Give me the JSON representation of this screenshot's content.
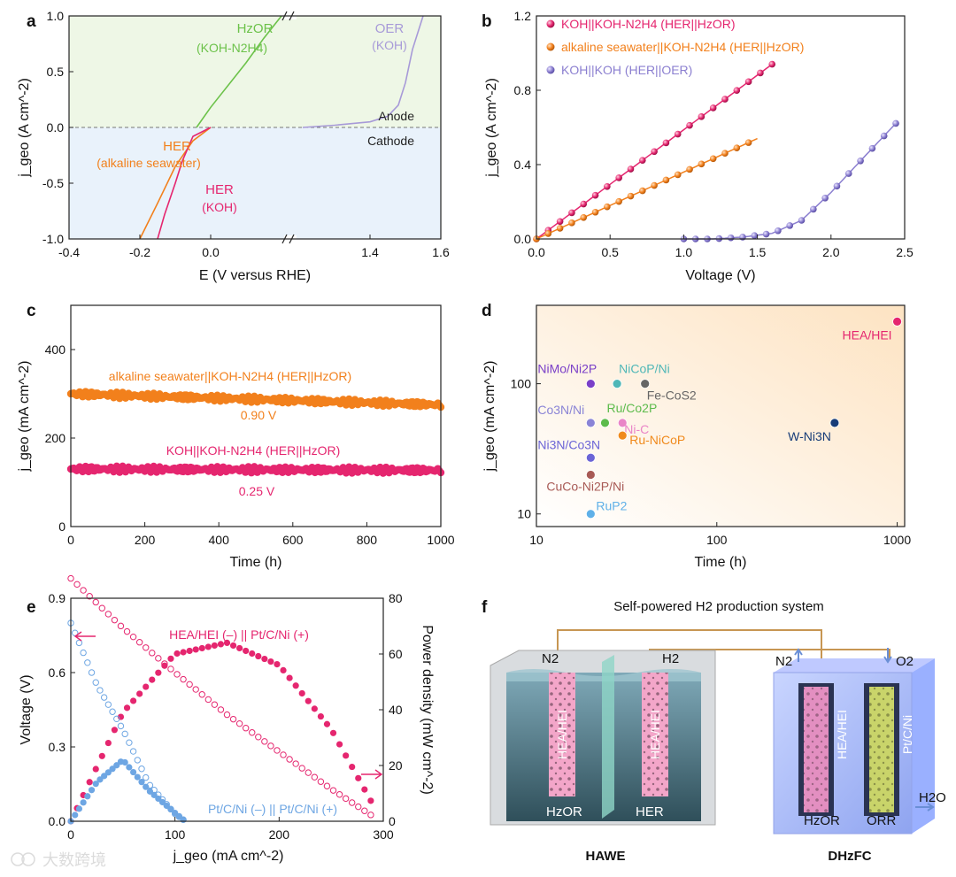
{
  "colors": {
    "pink": "#e5266f",
    "orange": "#f2801c",
    "purple": "#8b7fd0",
    "green": "#6cc24a",
    "lavender": "#a79ad8",
    "blue": "#6ea6e3",
    "navy": "#173c78"
  },
  "chart_data": [
    {
      "panel": "a",
      "type": "line",
      "xlabel": "E (V versus RHE)",
      "ylabel": "j_geo (A cm^-2)",
      "xlim": [
        -0.4,
        1.6
      ],
      "ylim": [
        -1.0,
        1.0
      ],
      "x_axis_break": [
        0.2,
        1.2
      ],
      "xticks": [
        "-0.4",
        "-0.2",
        "0.0",
        "1.4",
        "1.6"
      ],
      "yticks": [
        "-1.0",
        "-0.5",
        "0.0",
        "0.5",
        "1.0"
      ],
      "region_labels": {
        "anode": "Anode",
        "cathode": "Cathode"
      },
      "series": [
        {
          "label_line1": "HzOR",
          "label_line2": "(KOH-N2H4)",
          "color": "green",
          "x": [
            -0.04,
            0.0,
            0.05,
            0.1,
            0.15,
            0.2
          ],
          "y": [
            0.0,
            0.18,
            0.38,
            0.58,
            0.8,
            1.0
          ]
        },
        {
          "label_line1": "OER",
          "label_line2": "(KOH)",
          "color": "lavender",
          "x": [
            1.21,
            1.3,
            1.4,
            1.45,
            1.48,
            1.5,
            1.52,
            1.55
          ],
          "y": [
            0.0,
            0.02,
            0.05,
            0.1,
            0.2,
            0.4,
            0.7,
            1.0
          ]
        },
        {
          "label_line1": "HER",
          "label_line2": "(alkaline seawater)",
          "color": "orange",
          "x": [
            0.0,
            -0.05,
            -0.1,
            -0.15,
            -0.2
          ],
          "y": [
            0.0,
            -0.12,
            -0.35,
            -0.68,
            -1.0
          ]
        },
        {
          "label_line1": "HER",
          "label_line2": "(KOH)",
          "color": "pink",
          "x": [
            0.0,
            -0.05,
            -0.08,
            -0.1,
            -0.13,
            -0.15
          ],
          "y": [
            0.0,
            -0.08,
            -0.3,
            -0.5,
            -0.78,
            -1.0
          ]
        }
      ]
    },
    {
      "panel": "b",
      "type": "line",
      "xlabel": "Voltage (V)",
      "ylabel": "j_geo (A cm^-2)",
      "xlim": [
        0,
        2.5
      ],
      "ylim": [
        0,
        1.2
      ],
      "xticks": [
        "0.0",
        "0.5",
        "1.0",
        "1.5",
        "2.0",
        "2.5"
      ],
      "yticks": [
        "0.0",
        "0.4",
        "0.8",
        "1.2"
      ],
      "series": [
        {
          "name": "KOH||KOH-N2H4 (HER||HzOR)",
          "color": "pink",
          "x": [
            0.0,
            1.6
          ],
          "y": [
            0.0,
            0.94
          ]
        },
        {
          "name": "alkaline seawater||KOH-N2H4 (HER||HzOR)",
          "color": "orange",
          "x": [
            0.0,
            1.5
          ],
          "y": [
            0.0,
            0.54
          ]
        },
        {
          "name": "KOH||KOH (HER||OER)",
          "color": "purple",
          "x": [
            1.0,
            1.2,
            1.4,
            1.6,
            1.8,
            2.0,
            2.2,
            2.45
          ],
          "y": [
            0.0,
            0.0,
            0.01,
            0.03,
            0.1,
            0.25,
            0.42,
            0.63
          ]
        }
      ]
    },
    {
      "panel": "c",
      "type": "line",
      "xlabel": "Time (h)",
      "ylabel": "j_geo (mA cm^-2)",
      "xlim": [
        0,
        1000
      ],
      "ylim": [
        0,
        500
      ],
      "xticks": [
        "0",
        "200",
        "400",
        "600",
        "800",
        "1000"
      ],
      "yticks": [
        "0",
        "200",
        "400"
      ],
      "series": [
        {
          "name": "alkaline seawater||KOH-N2H4 (HER||HzOR)",
          "voltage": "0.90 V",
          "color": "orange",
          "x": [
            0,
            1000
          ],
          "y": [
            300,
            275
          ]
        },
        {
          "name": "KOH||KOH-N2H4 (HER||HzOR)",
          "voltage": "0.25 V",
          "color": "pink",
          "x": [
            0,
            1000
          ],
          "y": [
            130,
            127
          ]
        }
      ]
    },
    {
      "panel": "d",
      "type": "scatter",
      "xlabel": "Time (h)",
      "ylabel": "j_geo (mA cm^-2)",
      "xscale": "log",
      "yscale": "log",
      "xlim": [
        10,
        1100
      ],
      "ylim": [
        8,
        400
      ],
      "xticks": [
        "10",
        "100",
        "1000"
      ],
      "yticks": [
        "10",
        "100"
      ],
      "points": [
        {
          "label": "HEA/HEI",
          "x": 1000,
          "y": 300,
          "color": "#e5266f"
        },
        {
          "label": "NiMo/Ni2P",
          "x": 20,
          "y": 100,
          "color": "#7a3fc8"
        },
        {
          "label": "NiCoP/Ni",
          "x": 28,
          "y": 100,
          "color": "#4fb7b7"
        },
        {
          "label": "Fe-CoS2",
          "x": 40,
          "y": 100,
          "color": "#666666"
        },
        {
          "label": "Co3N/Ni",
          "x": 20,
          "y": 50,
          "color": "#8a84d6"
        },
        {
          "label": "Ru/Co2P",
          "x": 24,
          "y": 50,
          "color": "#5dbb4c"
        },
        {
          "label": "Ni-C",
          "x": 30,
          "y": 50,
          "color": "#e985c7"
        },
        {
          "label": "Ru-NiCoP",
          "x": 30,
          "y": 40,
          "color": "#f08a1c"
        },
        {
          "label": "W-Ni3N",
          "x": 450,
          "y": 50,
          "color": "#173c78"
        },
        {
          "label": "Ni3N/Co3N",
          "x": 20,
          "y": 27,
          "color": "#6b64d6"
        },
        {
          "label": "CuCo-Ni2P/Ni",
          "x": 20,
          "y": 20,
          "color": "#a85a55"
        },
        {
          "label": "RuP2",
          "x": 20,
          "y": 10,
          "color": "#5fb0e8"
        }
      ]
    },
    {
      "panel": "e",
      "type": "line",
      "xlabel": "j_geo (mA cm^-2)",
      "ylabel": "Voltage (V)",
      "y2label": "Power density (mW cm^-2)",
      "xlim": [
        0,
        300
      ],
      "ylim": [
        0,
        0.9
      ],
      "y2lim": [
        0,
        80
      ],
      "xticks": [
        "0",
        "100",
        "200",
        "300"
      ],
      "yticks": [
        "0.0",
        "0.3",
        "0.6",
        "0.9"
      ],
      "y2ticks": [
        "0",
        "20",
        "40",
        "60",
        "80"
      ],
      "series": [
        {
          "name": "HEA/HEI (–) || Pt/C/Ni (+)",
          "color": "pink",
          "x": [
            0,
            50,
            100,
            150,
            200,
            250,
            290
          ],
          "voltage": [
            0.98,
            0.78,
            0.6,
            0.43,
            0.28,
            0.13,
            0.02
          ],
          "power": [
            0,
            39,
            60,
            64,
            56,
            33,
            6
          ]
        },
        {
          "name": "Pt/C/Ni (–) || Pt/C/Ni (+)",
          "color": "blue",
          "x": [
            0,
            25,
            50,
            75,
            100,
            110
          ],
          "voltage": [
            0.8,
            0.55,
            0.37,
            0.15,
            0.03,
            0.0
          ],
          "power": [
            0,
            14,
            22,
            11,
            3,
            0
          ]
        }
      ]
    }
  ],
  "panel_f": {
    "title": "Self-powered H2 production system",
    "hawe": "HAWE",
    "dhzfc": "DHzFC",
    "hea_hei": "HEA/HEI",
    "ptc_ni": "Pt/C/Ni",
    "hzor": "HzOR",
    "her": "HER",
    "orr": "ORR",
    "n2": "N2",
    "h2": "H2",
    "o2": "O2",
    "h2o": "H2O"
  },
  "watermark": "大数跨境",
  "panel_letters": [
    "a",
    "b",
    "c",
    "d",
    "e",
    "f"
  ]
}
